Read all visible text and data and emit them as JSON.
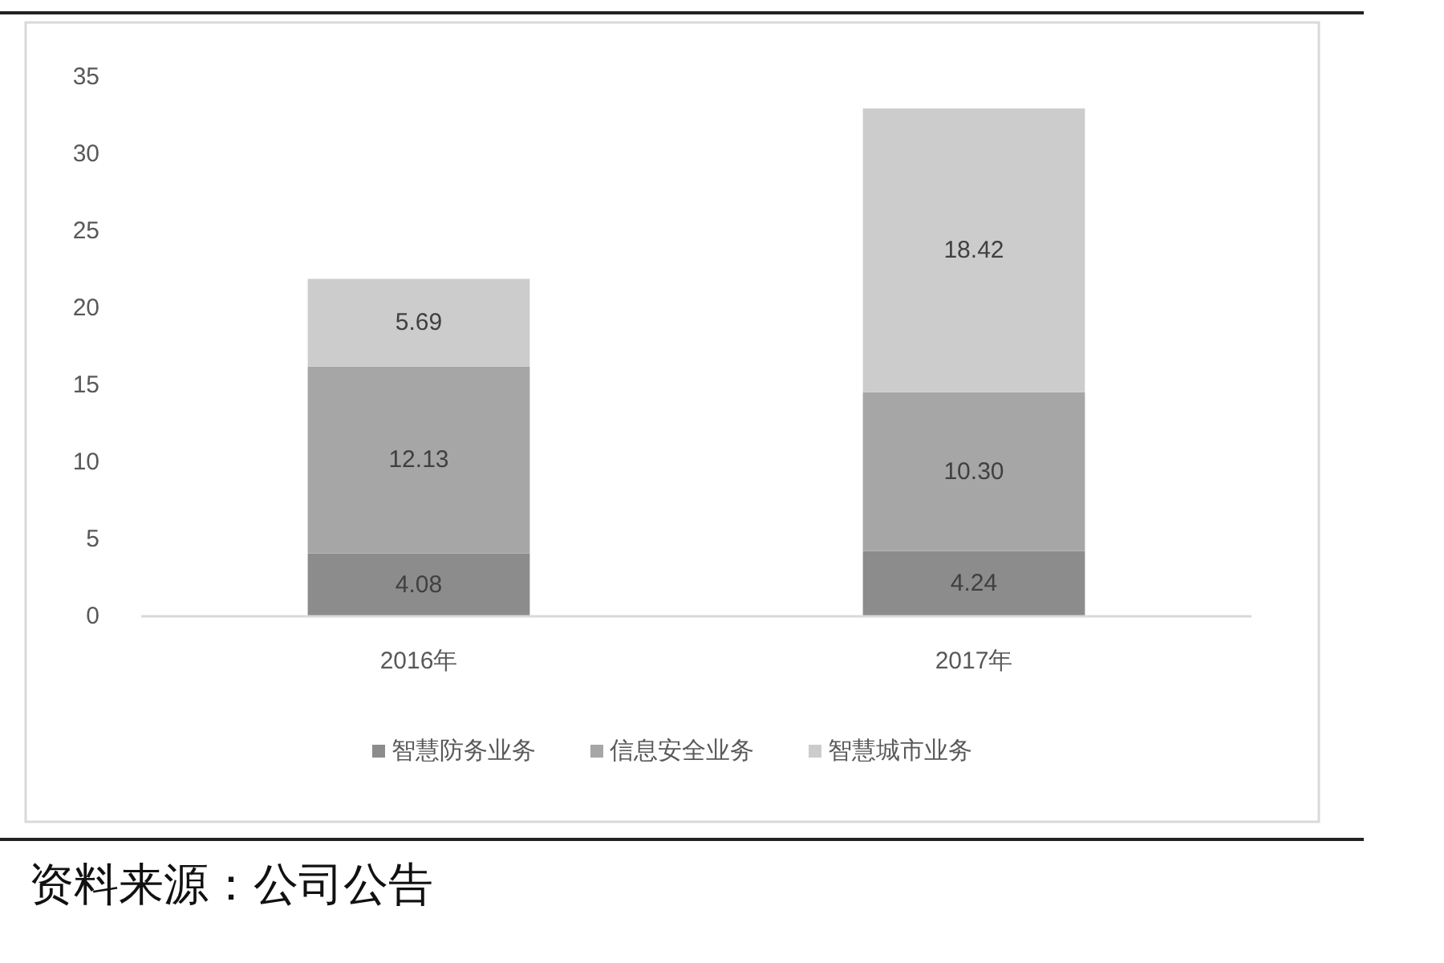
{
  "chart_data": {
    "type": "bar",
    "stacked": true,
    "categories": [
      "2016年",
      "2017年"
    ],
    "series": [
      {
        "name": "智慧防务业务",
        "color": "#8c8c8c",
        "values": [
          4.08,
          4.24
        ],
        "value_labels": [
          "4.08",
          "4.24"
        ]
      },
      {
        "name": "信息安全业务",
        "color": "#a6a6a6",
        "values": [
          12.13,
          10.3
        ],
        "value_labels": [
          "12.13",
          "10.30"
        ]
      },
      {
        "name": "智慧城市业务",
        "color": "#cccccc",
        "values": [
          5.69,
          18.42
        ],
        "value_labels": [
          "5.69",
          "18.42"
        ]
      }
    ],
    "ylim": [
      0,
      35
    ],
    "yticks": [
      0,
      5,
      10,
      15,
      20,
      25,
      30,
      35
    ],
    "legend": "bottom",
    "annotations": [
      "资料来源：公司公告"
    ]
  }
}
